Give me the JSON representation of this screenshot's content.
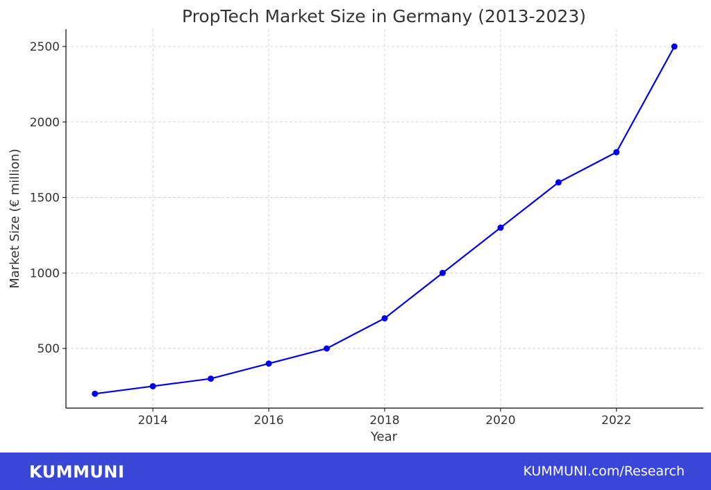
{
  "chart_data": {
    "type": "line",
    "title": "PropTech Market Size in Germany (2013-2023)",
    "xlabel": "Year",
    "ylabel": "Market Size (€ million)",
    "x": [
      2013,
      2014,
      2015,
      2016,
      2017,
      2018,
      2019,
      2020,
      2021,
      2022,
      2023
    ],
    "series": [
      {
        "values": [
          200,
          250,
          300,
          400,
          500,
          700,
          1000,
          1300,
          1600,
          1800,
          2500
        ]
      }
    ],
    "xlim": [
      2012.5,
      2023.5
    ],
    "ylim": [
      105,
      2615
    ],
    "xticks": [
      2014,
      2016,
      2018,
      2020,
      2022
    ],
    "yticks": [
      500,
      1000,
      1500,
      2000,
      2500
    ],
    "grid": true,
    "colors": {
      "line": "#0000ee",
      "marker": "#0000ee",
      "grid": "#cccccc",
      "axis": "#000000",
      "text": "#333333"
    }
  },
  "footer": {
    "brand": "KUMMUNI",
    "link": "KUMMUNI.com/Research",
    "background": "#3a46d8"
  }
}
